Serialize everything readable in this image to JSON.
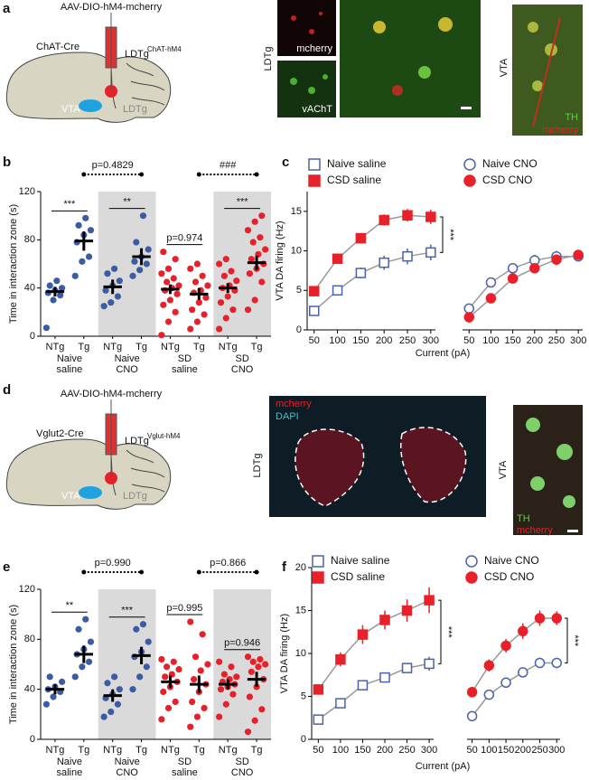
{
  "panel_labels": [
    "a",
    "b",
    "c",
    "d",
    "e",
    "f"
  ],
  "panel_a": {
    "virus": "AAV-DIO-hM4-mcherry",
    "mouse": "ChAT-Cre",
    "target": "LDTg",
    "target_sup": "ChAT-hM4",
    "vta": "VTA",
    "ldtg": "LDTg",
    "image_region": "LDTg",
    "image_top_label": "mcherry",
    "image_bottom_label": "vAChT",
    "vta_region": "VTA",
    "vta_label_1": "TH",
    "vta_label_2": "mcherry"
  },
  "panel_d": {
    "virus": "AAV-DIO-hM4-mcherry",
    "mouse": "Vglut2-Cre",
    "target": "LDTg",
    "target_sup": "Vglut-hM4",
    "vta": "VTA",
    "ldtg": "LDTg",
    "image_region": "LDTg",
    "image_label_1": "mcherry",
    "image_label_2": "DAPI",
    "vta_region": "VTA",
    "vta_label_1": "TH",
    "vta_label_2": "mcherry"
  },
  "chart_data": [
    {
      "type": "dot",
      "categories": [
        "NTg",
        "Tg",
        "NTg",
        "Tg",
        "NTg",
        "Tg",
        "NTg",
        "Tg"
      ],
      "group_labels": [
        [
          "Naive",
          "saline"
        ],
        [
          "Naive",
          "CNO"
        ],
        [
          "SD",
          "saline"
        ],
        [
          "SD",
          "CNO"
        ]
      ],
      "ylabel": "Time in interaction zone (s)",
      "ylim": [
        0,
        120
      ],
      "yticks": [
        0,
        40,
        80,
        120
      ],
      "colors": [
        "#3b5ba5",
        "#3b5ba5",
        "#3b5ba5",
        "#3b5ba5",
        "#e8202a",
        "#e8202a",
        "#e8202a",
        "#e8202a"
      ],
      "shaded_groups": [
        1,
        3
      ],
      "points": [
        [
          7,
          30,
          34,
          36,
          38,
          40,
          42,
          46
        ],
        [
          50,
          62,
          66,
          78,
          84,
          88,
          92,
          98
        ],
        [
          25,
          28,
          33,
          38,
          42,
          46,
          52,
          56
        ],
        [
          50,
          55,
          60,
          62,
          66,
          72,
          78,
          100
        ],
        [
          1,
          12,
          20,
          26,
          30,
          35,
          38,
          40,
          42,
          45,
          48,
          52,
          56,
          64,
          70
        ],
        [
          6,
          12,
          18,
          22,
          28,
          32,
          36,
          38,
          42,
          45,
          50,
          56,
          60
        ],
        [
          6,
          15,
          22,
          28,
          33,
          38,
          40,
          42,
          46,
          50,
          54,
          60,
          64
        ],
        [
          22,
          30,
          45,
          52,
          56,
          60,
          64,
          68,
          72,
          78,
          82,
          88,
          95,
          100
        ]
      ],
      "means": [
        37,
        79,
        41,
        66,
        39,
        35,
        40,
        61
      ],
      "errors": [
        4,
        8,
        6,
        7,
        4,
        5,
        4,
        6
      ],
      "annotations": [
        {
          "text": "***",
          "pair": [
            0,
            1
          ]
        },
        {
          "text": "**",
          "pair": [
            2,
            3
          ]
        },
        {
          "text": "p=0.974",
          "pair": [
            4,
            5
          ]
        },
        {
          "text": "***",
          "pair": [
            6,
            7
          ]
        }
      ],
      "top_annotations": [
        {
          "text": "p=0.4829",
          "pair": [
            1,
            3
          ]
        },
        {
          "text": "###",
          "pair": [
            5,
            7
          ]
        }
      ]
    },
    {
      "type": "line",
      "x": [
        50,
        100,
        150,
        200,
        250,
        300
      ],
      "xlim": [
        35,
        310
      ],
      "xticks": [
        50,
        100,
        150,
        200,
        250,
        300
      ],
      "ylim": [
        0,
        17.5
      ],
      "yticks": [
        0,
        5,
        10,
        15
      ],
      "ylabel": "VTA DA firing (Hz)",
      "xlabel": "Current (pA)",
      "line_color": "#999999",
      "series": [
        {
          "name": "Naive saline",
          "color": "#4a62a8",
          "marker": "square",
          "filled": false,
          "values": [
            2.4,
            5.0,
            7.2,
            8.5,
            9.3,
            9.8
          ],
          "errors": [
            0.5,
            0.6,
            0.7,
            0.9,
            1.0,
            1.0
          ]
        },
        {
          "name": "CSD saline",
          "color": "#e8202a",
          "marker": "square",
          "filled": true,
          "values": [
            4.9,
            9.0,
            11.6,
            13.9,
            14.5,
            14.3
          ],
          "errors": [
            0.4,
            0.6,
            0.6,
            0.7,
            0.8,
            0.9
          ]
        }
      ],
      "significance": "***"
    },
    {
      "type": "line",
      "x": [
        50,
        100,
        150,
        200,
        250,
        300
      ],
      "xlim": [
        35,
        310
      ],
      "xticks": [
        50,
        100,
        150,
        200,
        250,
        300
      ],
      "ylim": [
        0,
        17.5
      ],
      "line_color": "#999999",
      "series": [
        {
          "name": "Naive CNO",
          "color": "#4a62a8",
          "marker": "circle",
          "filled": false,
          "values": [
            2.7,
            6.0,
            7.8,
            8.8,
            9.3,
            9.3
          ],
          "errors": [
            0.3,
            0.6,
            0.6,
            0.7,
            0.7,
            0.6
          ]
        },
        {
          "name": "CSD CNO",
          "color": "#e8202a",
          "marker": "circle",
          "filled": true,
          "values": [
            1.6,
            4.0,
            6.5,
            7.8,
            8.9,
            9.5
          ],
          "errors": [
            0.3,
            0.4,
            0.5,
            0.6,
            0.6,
            0.5
          ]
        }
      ]
    },
    {
      "type": "dot",
      "categories": [
        "NTg",
        "Tg",
        "NTg",
        "Tg",
        "NTg",
        "Tg",
        "NTg",
        "Tg"
      ],
      "group_labels": [
        [
          "Naive",
          "saline"
        ],
        [
          "Naive",
          "CNO"
        ],
        [
          "SD",
          "saline"
        ],
        [
          "SD",
          "CNO"
        ]
      ],
      "ylabel": "Time in interaction zone (s)",
      "ylim": [
        0,
        120
      ],
      "yticks": [
        0,
        40,
        80,
        120
      ],
      "colors": [
        "#3b5ba5",
        "#3b5ba5",
        "#3b5ba5",
        "#3b5ba5",
        "#e8202a",
        "#e8202a",
        "#e8202a",
        "#e8202a"
      ],
      "shaded_groups": [
        1,
        3
      ],
      "points": [
        [
          28,
          34,
          38,
          40,
          42,
          46,
          50
        ],
        [
          50,
          58,
          62,
          68,
          72,
          78,
          88,
          96
        ],
        [
          18,
          22,
          28,
          33,
          36,
          40,
          45,
          50
        ],
        [
          40,
          50,
          58,
          66,
          70,
          78,
          88,
          92
        ],
        [
          16,
          25,
          30,
          38,
          42,
          46,
          50,
          52,
          56,
          58,
          62,
          64
        ],
        [
          10,
          18,
          25,
          30,
          38,
          44,
          48,
          55,
          60,
          66,
          84,
          94
        ],
        [
          18,
          28,
          36,
          40,
          42,
          44,
          46,
          48,
          50,
          52,
          58,
          62
        ],
        [
          6,
          15,
          24,
          34,
          42,
          48,
          54,
          58,
          60,
          62,
          64,
          66
        ]
      ],
      "means": [
        40,
        68,
        35,
        67,
        46,
        44,
        44,
        48
      ],
      "errors": [
        4,
        7,
        5,
        7,
        5,
        7,
        4,
        6
      ],
      "annotations": [
        {
          "text": "**",
          "pair": [
            0,
            1
          ]
        },
        {
          "text": "***",
          "pair": [
            2,
            3
          ]
        },
        {
          "text": "p=0.995",
          "pair": [
            4,
            5
          ]
        },
        {
          "text": "p=0.946",
          "pair": [
            6,
            7
          ]
        }
      ],
      "top_annotations": [
        {
          "text": "p=0.990",
          "pair": [
            1,
            3
          ]
        },
        {
          "text": "p=0.866",
          "pair": [
            5,
            7
          ]
        }
      ]
    },
    {
      "type": "line",
      "x": [
        50,
        100,
        150,
        200,
        250,
        300
      ],
      "xlim": [
        35,
        310
      ],
      "xticks": [
        50,
        100,
        150,
        200,
        250,
        300
      ],
      "ylim": [
        0,
        20
      ],
      "yticks": [
        0,
        5,
        10,
        15,
        20
      ],
      "ylabel": "VTA DA firing (Hz)",
      "xlabel": "Current (pA)",
      "line_color": "#999999",
      "series": [
        {
          "name": "Naive saline",
          "color": "#4a62a8",
          "marker": "square",
          "filled": false,
          "values": [
            2.3,
            4.2,
            6.3,
            7.2,
            8.3,
            8.8
          ],
          "errors": [
            0.3,
            0.4,
            0.5,
            0.5,
            0.6,
            0.8
          ]
        },
        {
          "name": "CSD saline",
          "color": "#e8202a",
          "marker": "square",
          "filled": true,
          "values": [
            5.8,
            9.3,
            12.2,
            13.9,
            15.0,
            16.2
          ],
          "errors": [
            0.6,
            0.8,
            1.1,
            1.1,
            1.3,
            1.5
          ]
        }
      ],
      "significance": "***"
    },
    {
      "type": "line",
      "x": [
        50,
        100,
        150,
        200,
        250,
        300
      ],
      "xlim": [
        35,
        310
      ],
      "xticks": [
        50,
        100,
        150,
        200,
        250,
        300
      ],
      "ylim": [
        0,
        20
      ],
      "line_color": "#999999",
      "series": [
        {
          "name": "Naive CNO",
          "color": "#4a62a8",
          "marker": "circle",
          "filled": false,
          "values": [
            2.7,
            5.2,
            6.6,
            7.8,
            8.9,
            8.9
          ],
          "errors": [
            0.3,
            0.4,
            0.5,
            0.5,
            0.6,
            0.6
          ]
        },
        {
          "name": "CSD CNO",
          "color": "#e8202a",
          "marker": "circle",
          "filled": true,
          "values": [
            5.5,
            8.6,
            10.9,
            12.6,
            14.1,
            14.1
          ],
          "errors": [
            0.4,
            0.7,
            0.8,
            0.9,
            0.9,
            0.8
          ]
        }
      ],
      "significance": "***"
    }
  ]
}
